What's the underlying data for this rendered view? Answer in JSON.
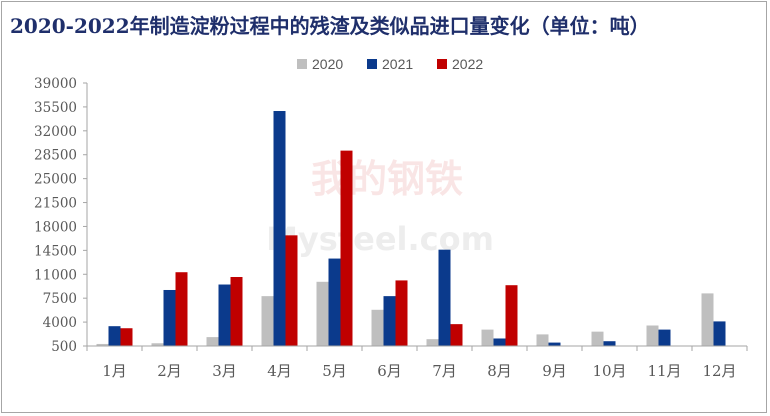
{
  "chart_data": {
    "type": "bar",
    "title": "2020-2022年制造淀粉过程中的残渣及类似品进口量变化（单位：吨）",
    "categories": [
      "1月",
      "2月",
      "3月",
      "4月",
      "5月",
      "6月",
      "7月",
      "8月",
      "9月",
      "10月",
      "11月",
      "12月"
    ],
    "series": [
      {
        "name": "2020",
        "color": "#bfbfbf",
        "values": [
          800,
          900,
          1800,
          7800,
          9900,
          5800,
          1500,
          2900,
          2200,
          2600,
          3500,
          8200
        ]
      },
      {
        "name": "2021",
        "color": "#0b3a8c",
        "values": [
          3400,
          8700,
          9500,
          34900,
          13300,
          7800,
          14600,
          1600,
          1000,
          1200,
          2900,
          4100
        ]
      },
      {
        "name": "2022",
        "color": "#c00000",
        "values": [
          3100,
          11300,
          10600,
          16700,
          29100,
          10100,
          3700,
          9400,
          null,
          null,
          null,
          null
        ]
      }
    ],
    "ylim": [
      500,
      39000
    ],
    "yticks": [
      500,
      4000,
      7500,
      11000,
      14500,
      18000,
      21500,
      25000,
      28500,
      32000,
      35500,
      39000
    ],
    "legend_position": "top-center",
    "grid": false,
    "watermark": {
      "line1": "我的钢铁",
      "line2": "Mysteel.com"
    }
  }
}
